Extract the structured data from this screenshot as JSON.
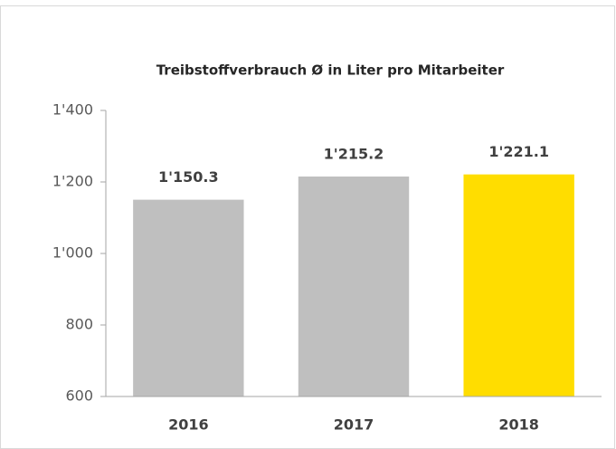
{
  "chart_data": {
    "type": "bar",
    "title": "Treibstoffverbrauch Ø in Liter pro Mitarbeiter",
    "categories": [
      "2016",
      "2017",
      "2018"
    ],
    "values": [
      1150.3,
      1215.2,
      1221.1
    ],
    "value_labels": [
      "1'150.3",
      "1'215.2",
      "1'221.1"
    ],
    "colors": [
      "#bfbfbf",
      "#bfbfbf",
      "#ffdd00"
    ],
    "ylim": [
      600,
      1400
    ],
    "yticks": [
      600,
      800,
      {
        "value": 1000,
        "label": "1'000"
      },
      {
        "value": 1200,
        "label": "1'200"
      },
      {
        "value": 1400,
        "label": "1'400"
      }
    ],
    "grid": false
  }
}
